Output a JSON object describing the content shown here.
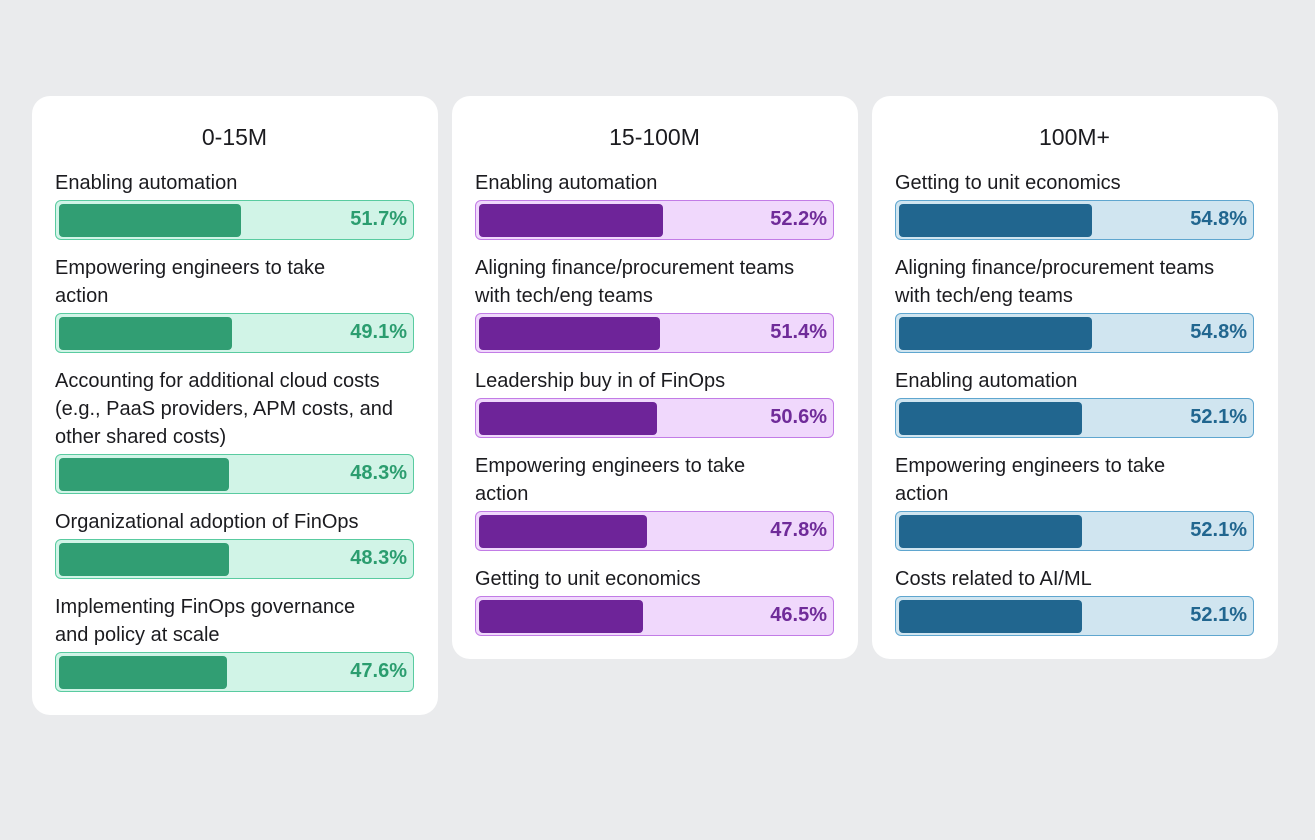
{
  "chart_data": [
    {
      "type": "bar",
      "title": "0-15M",
      "orientation": "horizontal",
      "xlim": [
        0,
        100
      ],
      "unit": "%",
      "colors": {
        "fill": "#319e73",
        "track": "#d1f4e7",
        "border": "#59cba0",
        "text": "#2b9d6f"
      },
      "categories": [
        "Enabling automation",
        "Empowering engineers to take action",
        "Accounting for additional cloud costs (e.g., PaaS providers, APM costs, and other shared costs)",
        "Organizational adoption of FinOps",
        "Implementing FinOps governance and policy at scale"
      ],
      "labels": [
        [
          "Enabling automation"
        ],
        [
          "Empowering engineers to take",
          "action"
        ],
        [
          "Accounting for additional cloud costs",
          "(e.g., PaaS providers, APM costs, and",
          "other shared costs)"
        ],
        [
          "Organizational adoption of FinOps"
        ],
        [
          "Implementing FinOps governance",
          "and policy at scale"
        ]
      ],
      "values": [
        51.7,
        49.1,
        48.3,
        48.3,
        47.6
      ],
      "value_labels": [
        "51.7%",
        "49.1%",
        "48.3%",
        "48.3%",
        "47.6%"
      ]
    },
    {
      "type": "bar",
      "title": "15-100M",
      "orientation": "horizontal",
      "xlim": [
        0,
        100
      ],
      "unit": "%",
      "colors": {
        "fill": "#6e2499",
        "track": "#f0d8fc",
        "border": "#c27ce6",
        "text": "#6f2b99"
      },
      "categories": [
        "Enabling automation",
        "Aligning finance/procurement teams with tech/eng teams",
        "Leadership buy in of FinOps",
        "Empowering engineers to take action",
        "Getting to unit economics"
      ],
      "labels": [
        [
          "Enabling automation"
        ],
        [
          "Aligning finance/procurement teams",
          "with tech/eng teams"
        ],
        [
          "Leadership buy in of FinOps"
        ],
        [
          "Empowering engineers to take",
          "action"
        ],
        [
          "Getting to unit economics"
        ]
      ],
      "values": [
        52.2,
        51.4,
        50.6,
        47.8,
        46.5
      ],
      "value_labels": [
        "52.2%",
        "51.4%",
        "50.6%",
        "47.8%",
        "46.5%"
      ]
    },
    {
      "type": "bar",
      "title": "100M+",
      "orientation": "horizontal",
      "xlim": [
        0,
        100
      ],
      "unit": "%",
      "colors": {
        "fill": "#21668f",
        "track": "#d0e5f0",
        "border": "#5fa6cf",
        "text": "#21668f"
      },
      "categories": [
        "Getting to unit economics",
        "Aligning finance/procurement teams with tech/eng teams",
        "Enabling automation",
        "Empowering engineers to take action",
        "Costs related to AI/ML"
      ],
      "labels": [
        [
          "Getting to unit economics"
        ],
        [
          "Aligning finance/procurement teams",
          "with tech/eng teams"
        ],
        [
          "Enabling automation"
        ],
        [
          "Empowering engineers to take",
          "action"
        ],
        [
          "Costs related to AI/ML"
        ]
      ],
      "values": [
        54.8,
        54.8,
        52.1,
        52.1,
        52.1
      ],
      "value_labels": [
        "54.8%",
        "54.8%",
        "52.1%",
        "52.1%",
        "52.1%"
      ]
    }
  ]
}
